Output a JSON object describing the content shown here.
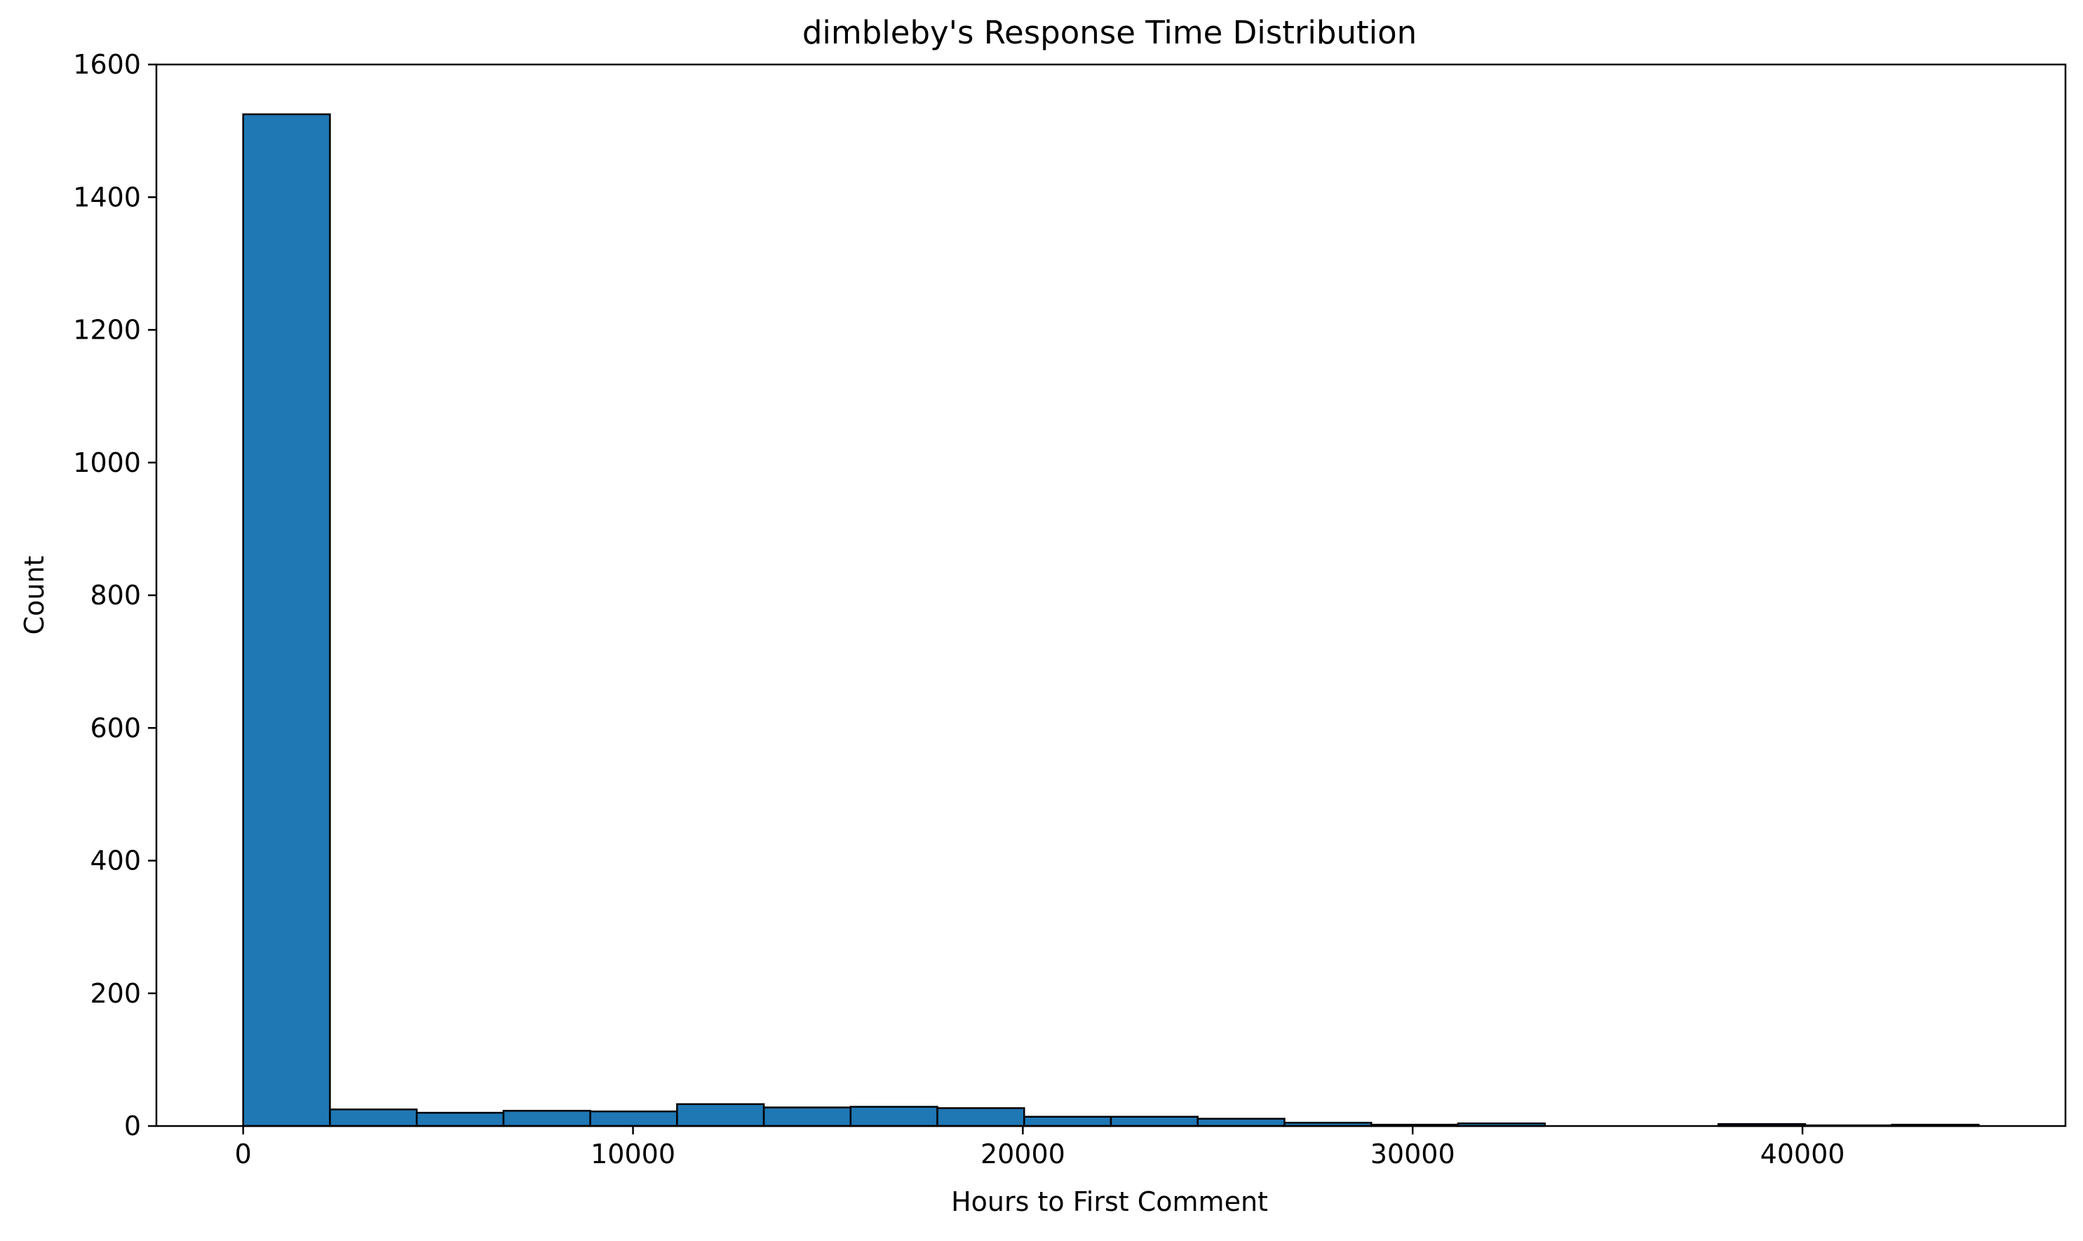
{
  "chart_data": {
    "type": "bar",
    "title": "dimbleby's Response Time Distribution",
    "xlabel": "Hours to First Comment",
    "ylabel": "Count",
    "xlim": [
      -2226,
      46746
    ],
    "ylim": [
      0,
      1600
    ],
    "xticks": [
      0,
      10000,
      20000,
      30000,
      40000
    ],
    "yticks": [
      0,
      200,
      400,
      600,
      800,
      1000,
      1200,
      1400,
      1600
    ],
    "bin_edges": [
      0,
      2226,
      4452,
      6678,
      8904,
      11130,
      13356,
      15582,
      17808,
      20034,
      22260,
      24486,
      26712,
      28938,
      31164,
      33390,
      35616,
      37842,
      40068,
      42294,
      44520
    ],
    "values": [
      1525,
      25,
      20,
      23,
      22,
      33,
      28,
      29,
      27,
      14,
      14,
      11,
      5,
      2,
      4,
      0,
      0,
      3,
      1,
      2
    ],
    "grid": false,
    "legend": "none",
    "bar_color": "#1f77b4",
    "edge_color": "#000000"
  }
}
